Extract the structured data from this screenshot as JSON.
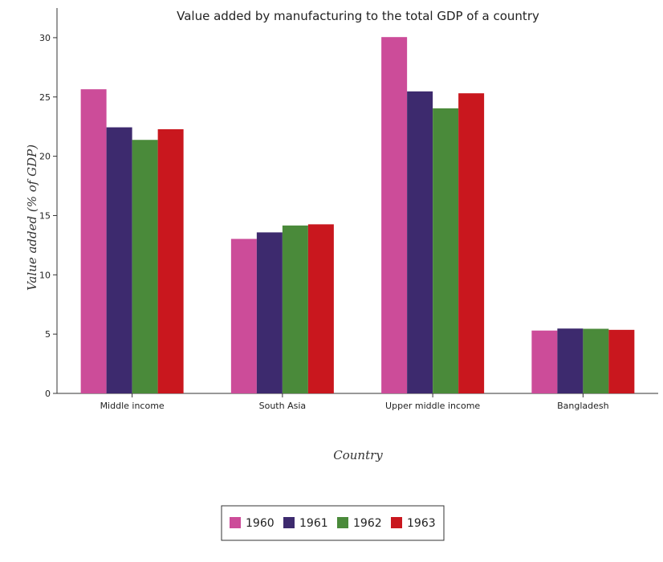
{
  "chart_data": {
    "type": "bar",
    "title": "Value added by manufacturing to the total GDP of a country",
    "xlabel": "Country",
    "ylabel": "Value added (% of GDP)",
    "categories": [
      "Middle income",
      "South Asia",
      "Upper middle income",
      "Bangladesh"
    ],
    "series": [
      {
        "name": "1960",
        "color": "#cc4c99",
        "values": [
          25.65,
          13.03,
          30.05,
          5.3
        ]
      },
      {
        "name": "1961",
        "color": "#3d2a6e",
        "values": [
          22.44,
          13.58,
          25.47,
          5.47
        ]
      },
      {
        "name": "1962",
        "color": "#4a8a3a",
        "values": [
          21.38,
          14.16,
          24.04,
          5.45
        ]
      },
      {
        "name": "1963",
        "color": "#c9171e",
        "values": [
          22.28,
          14.26,
          25.31,
          5.36
        ]
      }
    ],
    "ylim": [
      0,
      32.5
    ],
    "yticks": [
      0,
      5,
      10,
      15,
      20,
      25,
      30
    ],
    "grid": false,
    "legend_position": "bottom"
  }
}
